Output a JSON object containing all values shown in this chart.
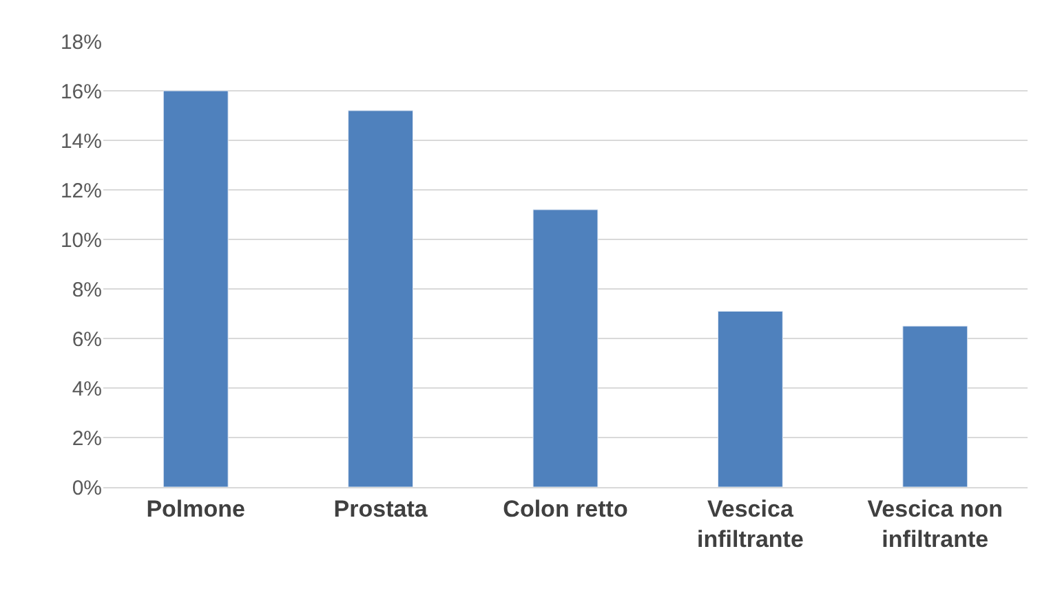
{
  "chart_data": {
    "type": "bar",
    "categories": [
      "Polmone",
      "Prostata",
      "Colon retto",
      "Vescica infiltrante",
      "Vescica non infiltrante"
    ],
    "values": [
      16,
      15.2,
      11.2,
      7.1,
      6.5
    ],
    "color": "#4f81bd",
    "ylim": [
      0,
      18
    ],
    "yticks": [
      {
        "value": 0,
        "label": "0%"
      },
      {
        "value": 2,
        "label": "2%"
      },
      {
        "value": 4,
        "label": "4%"
      },
      {
        "value": 6,
        "label": "6%"
      },
      {
        "value": 8,
        "label": "8%"
      },
      {
        "value": 10,
        "label": "10%"
      },
      {
        "value": 12,
        "label": "12%"
      },
      {
        "value": 14,
        "label": "14%"
      },
      {
        "value": 16,
        "label": "16%"
      },
      {
        "value": 18,
        "label": "18%"
      }
    ],
    "grid": "y"
  }
}
